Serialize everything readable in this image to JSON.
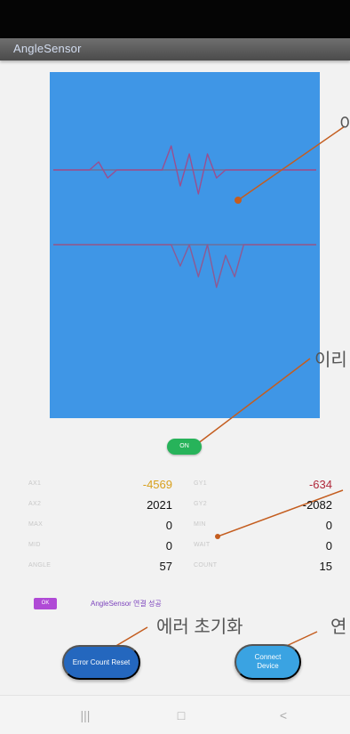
{
  "app": {
    "title": "AngleSensor"
  },
  "annotations": {
    "top_right": "이",
    "middle_right": "이리",
    "reset_note": "에러 초기화",
    "connect_note": "연"
  },
  "toggle": {
    "label": "ON"
  },
  "sensor_values": [
    {
      "left_label": "AX1",
      "left_value": "-4569",
      "right_label": "GY1",
      "right_value": "-634"
    },
    {
      "left_label": "AX2",
      "left_value": "2021",
      "right_label": "GY2",
      "right_value": "-2082"
    },
    {
      "left_label": "MAX",
      "left_value": "0",
      "right_label": "MIN",
      "right_value": "0"
    },
    {
      "left_label": "MID",
      "left_value": "0",
      "right_label": "WAIT",
      "right_value": "0"
    },
    {
      "left_label": "ANGLE",
      "left_value": "57",
      "right_label": "COUNT",
      "right_value": "15"
    }
  ],
  "status": {
    "chip": "OK",
    "message": "AngleSensor 연결 성공"
  },
  "buttons": {
    "reset_label": "Error Count Reset",
    "connect_label": "Connect Device"
  },
  "navigation": {
    "recent": "|||",
    "home": "□",
    "back": "<"
  },
  "chart_data": {
    "type": "line",
    "series": [
      {
        "values": [
          0,
          0,
          0,
          0,
          0,
          0,
          0,
          0,
          0,
          0,
          0,
          0,
          0,
          0,
          0,
          0,
          0,
          0,
          0,
          0,
          0,
          0,
          0,
          0,
          0,
          0,
          0,
          0,
          0,
          0
        ]
      },
      {
        "values": [
          0,
          0,
          0,
          0,
          0,
          0,
          0,
          0,
          0,
          0,
          0,
          0,
          0,
          0,
          0,
          0,
          0,
          0,
          0,
          0,
          0,
          0,
          0,
          0,
          0,
          0,
          0,
          0,
          0,
          0
        ]
      },
      {
        "values": [
          0,
          0,
          0,
          0,
          0,
          1,
          -1,
          0,
          0,
          0,
          0,
          0,
          0,
          3,
          -2,
          2,
          -3,
          2,
          -1,
          0,
          0,
          0,
          0,
          0,
          0,
          0,
          0,
          0,
          0,
          0
        ]
      },
      {
        "values": [
          0,
          0,
          0,
          0,
          0,
          0,
          0,
          0,
          0,
          0,
          0,
          0,
          0,
          0,
          -2,
          0,
          -3,
          0,
          -4,
          -1,
          -3,
          0,
          0,
          0,
          0,
          0,
          0,
          0,
          0,
          0
        ]
      }
    ],
    "colors": [
      "#6f6f9a",
      "#6f6f9a",
      "#9a4f8f",
      "#8d5a93"
    ]
  }
}
